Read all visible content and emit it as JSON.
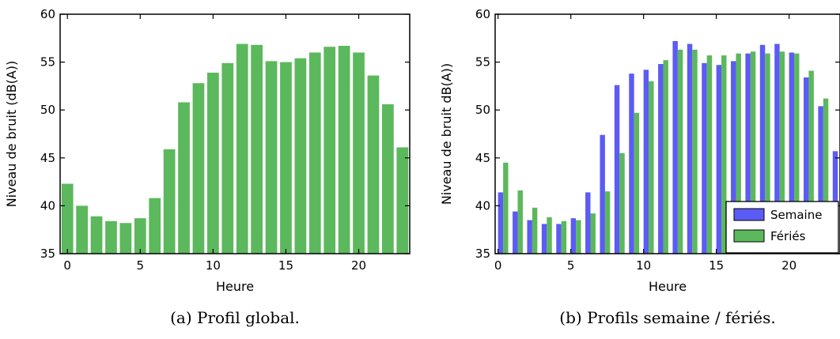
{
  "colors": {
    "global": "#5cb85c",
    "semaine": "#5b5bf5",
    "feries": "#5cb85c"
  },
  "chart_data": [
    {
      "type": "bar",
      "xlabel": "Heure",
      "ylabel": "Niveau de bruit (dB(A))",
      "caption": "(a) Profil global.",
      "xlim": [
        -0.5,
        23.5
      ],
      "ylim": [
        35,
        60
      ],
      "xticks": [
        0,
        5,
        10,
        15,
        20
      ],
      "yticks": [
        35,
        40,
        45,
        50,
        55,
        60
      ],
      "x": [
        0,
        1,
        2,
        3,
        4,
        5,
        6,
        7,
        8,
        9,
        10,
        11,
        12,
        13,
        14,
        15,
        16,
        17,
        18,
        19,
        20,
        21,
        22,
        23
      ],
      "values": [
        42.3,
        40.0,
        38.9,
        38.4,
        38.2,
        38.7,
        40.8,
        45.9,
        50.8,
        52.8,
        53.9,
        54.9,
        56.9,
        56.8,
        55.1,
        55.0,
        55.4,
        56.0,
        56.6,
        56.7,
        56.0,
        53.6,
        50.6,
        46.1
      ]
    },
    {
      "type": "bar",
      "xlabel": "Heure",
      "ylabel": "Niveau de bruit dB(A))",
      "caption": "(b) Profils semaine / fériés.",
      "xlim": [
        -0.2,
        23.5
      ],
      "ylim": [
        35,
        60
      ],
      "xticks": [
        0,
        5,
        10,
        15,
        20
      ],
      "yticks": [
        35,
        40,
        45,
        50,
        55,
        60
      ],
      "x": [
        0,
        1,
        2,
        3,
        4,
        5,
        6,
        7,
        8,
        9,
        10,
        11,
        12,
        13,
        14,
        15,
        16,
        17,
        18,
        19,
        20,
        21,
        22,
        23
      ],
      "legend_position": "lower-right",
      "series": [
        {
          "name": "Semaine",
          "values": [
            41.4,
            39.4,
            38.5,
            38.1,
            38.1,
            38.7,
            41.4,
            47.4,
            52.6,
            53.8,
            54.2,
            54.8,
            57.2,
            56.9,
            54.9,
            54.7,
            55.1,
            55.9,
            56.8,
            56.9,
            56.0,
            53.4,
            50.4,
            45.7
          ]
        },
        {
          "name": "Fériés",
          "values": [
            44.5,
            41.6,
            39.8,
            38.8,
            38.4,
            38.5,
            39.2,
            41.5,
            45.5,
            49.7,
            53.0,
            55.2,
            56.3,
            56.3,
            55.7,
            55.7,
            55.9,
            56.1,
            55.9,
            56.1,
            55.9,
            54.1,
            51.2,
            null
          ]
        }
      ]
    }
  ]
}
